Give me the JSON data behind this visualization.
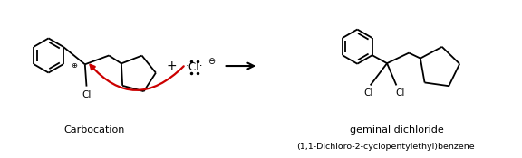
{
  "background_color": "#ffffff",
  "fig_width": 5.76,
  "fig_height": 1.75,
  "dpi": 100,
  "carbocation_label": "Carbocation",
  "product_label1": "geminal dichloride",
  "product_label2": "(1,1-Dichloro-2-cyclopentylethyl)benzene",
  "arrow_color": "#cc0000",
  "bond_color": "#000000",
  "text_color": "#000000"
}
